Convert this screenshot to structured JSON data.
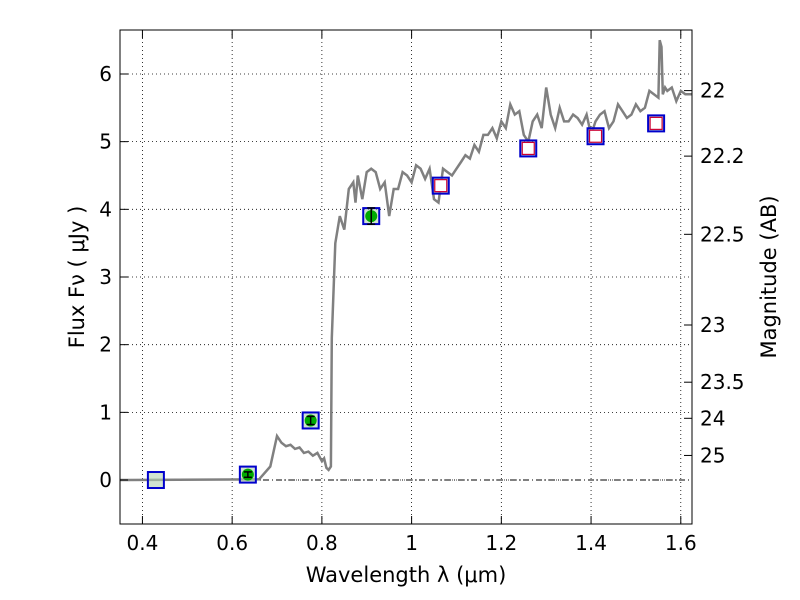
{
  "chart_data": {
    "type": "scatter",
    "xlabel": "Wavelength  λ (μm)",
    "ylabel_left": "Flux  Fν  ( μJy )",
    "ylabel_right": "Magnitude (AB)",
    "xlim": [
      0.35,
      1.625
    ],
    "ylim": [
      -0.65,
      6.65
    ],
    "grid": true,
    "x_ticks": [
      {
        "value": 0.4,
        "label": "0.4"
      },
      {
        "value": 0.6,
        "label": "0.6"
      },
      {
        "value": 0.8,
        "label": "0.8"
      },
      {
        "value": 1.0,
        "label": "1"
      },
      {
        "value": 1.2,
        "label": "1.2"
      },
      {
        "value": 1.4,
        "label": "1.4"
      },
      {
        "value": 1.6,
        "label": "1.6"
      }
    ],
    "y_ticks": [
      {
        "value": 0,
        "label": "0"
      },
      {
        "value": 1,
        "label": "1"
      },
      {
        "value": 2,
        "label": "2"
      },
      {
        "value": 3,
        "label": "3"
      },
      {
        "value": 4,
        "label": "4"
      },
      {
        "value": 5,
        "label": "5"
      },
      {
        "value": 6,
        "label": "6"
      }
    ],
    "right_ticks": [
      {
        "value": 22,
        "label": "22"
      },
      {
        "value": 22.2,
        "label": "22.2"
      },
      {
        "value": 22.5,
        "label": "22.5"
      },
      {
        "value": 23,
        "label": "23"
      },
      {
        "value": 23.5,
        "label": "23.5"
      },
      {
        "value": 24,
        "label": "24"
      },
      {
        "value": 25,
        "label": "25"
      }
    ],
    "colors": {
      "spectrum": "#808080",
      "model_box": "#0000cc",
      "model_box_fill": "#b3d1b3",
      "upper_box": "#cc0033",
      "detection": "#00aa00"
    },
    "spectrum": {
      "x": [
        0.35,
        0.66,
        0.685,
        0.7,
        0.71,
        0.72,
        0.73,
        0.74,
        0.75,
        0.76,
        0.77,
        0.78,
        0.79,
        0.8,
        0.805,
        0.81,
        0.815,
        0.82,
        0.822,
        0.83,
        0.84,
        0.85,
        0.86,
        0.87,
        0.875,
        0.88,
        0.89,
        0.9,
        0.91,
        0.92,
        0.93,
        0.94,
        0.95,
        0.96,
        0.97,
        0.98,
        0.99,
        1.0,
        1.01,
        1.02,
        1.03,
        1.04,
        1.05,
        1.06,
        1.07,
        1.08,
        1.09,
        1.1,
        1.11,
        1.12,
        1.13,
        1.14,
        1.15,
        1.16,
        1.17,
        1.18,
        1.19,
        1.2,
        1.21,
        1.22,
        1.23,
        1.24,
        1.25,
        1.26,
        1.27,
        1.28,
        1.29,
        1.3,
        1.31,
        1.32,
        1.33,
        1.34,
        1.35,
        1.36,
        1.37,
        1.38,
        1.39,
        1.4,
        1.41,
        1.42,
        1.43,
        1.44,
        1.45,
        1.46,
        1.47,
        1.48,
        1.49,
        1.5,
        1.51,
        1.52,
        1.53,
        1.54,
        1.55,
        1.553,
        1.557,
        1.56,
        1.565,
        1.57,
        1.58,
        1.59,
        1.6,
        1.61,
        1.625
      ],
      "y": [
        0.0,
        0.01,
        0.2,
        0.65,
        0.55,
        0.5,
        0.52,
        0.46,
        0.48,
        0.4,
        0.42,
        0.36,
        0.4,
        0.28,
        0.32,
        0.18,
        0.15,
        0.2,
        2.1,
        3.5,
        3.9,
        3.7,
        4.3,
        4.4,
        4.1,
        4.5,
        4.15,
        4.55,
        4.6,
        4.55,
        4.3,
        4.4,
        3.9,
        4.3,
        4.3,
        4.55,
        4.5,
        4.4,
        4.65,
        4.6,
        4.45,
        4.6,
        4.15,
        4.1,
        4.6,
        4.55,
        4.5,
        4.6,
        4.7,
        4.8,
        4.75,
        4.95,
        4.85,
        5.1,
        5.1,
        5.2,
        5.05,
        5.3,
        5.2,
        5.55,
        5.4,
        5.45,
        5.1,
        5.0,
        5.3,
        5.4,
        5.2,
        5.8,
        5.4,
        5.2,
        5.5,
        5.3,
        5.3,
        5.4,
        5.35,
        5.25,
        5.4,
        5.1,
        5.3,
        5.4,
        5.45,
        5.2,
        5.3,
        5.55,
        5.45,
        5.35,
        5.4,
        5.55,
        5.45,
        5.5,
        5.75,
        5.7,
        5.65,
        6.5,
        6.4,
        5.7,
        5.8,
        5.75,
        5.8,
        5.6,
        5.75,
        5.7,
        5.7
      ]
    },
    "model_points": [
      {
        "x": 0.43,
        "y": 0.0
      },
      {
        "x": 0.635,
        "y": 0.08
      },
      {
        "x": 0.775,
        "y": 0.88
      },
      {
        "x": 0.91,
        "y": 3.9
      },
      {
        "x": 1.065,
        "y": 4.35
      },
      {
        "x": 1.26,
        "y": 4.9
      },
      {
        "x": 1.41,
        "y": 5.08
      },
      {
        "x": 1.545,
        "y": 5.27
      }
    ],
    "upper_limit_points": [
      {
        "x": 1.065,
        "y": 4.35
      },
      {
        "x": 1.26,
        "y": 4.9
      },
      {
        "x": 1.41,
        "y": 5.08
      },
      {
        "x": 1.545,
        "y": 5.27
      }
    ],
    "detections": [
      {
        "x": 0.635,
        "y": 0.08,
        "err": 0.04
      },
      {
        "x": 0.775,
        "y": 0.88,
        "err": 0.06
      },
      {
        "x": 0.91,
        "y": 3.9,
        "err": 0.12
      }
    ]
  }
}
